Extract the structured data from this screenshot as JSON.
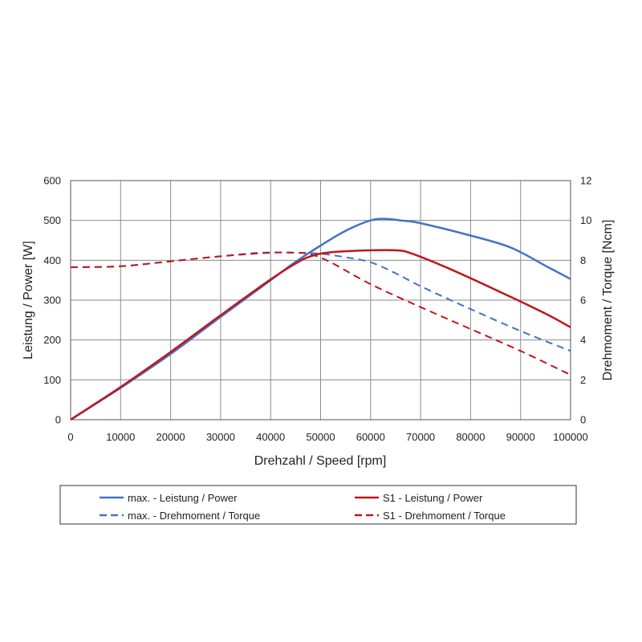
{
  "chart_data": {
    "type": "line",
    "title": "",
    "xlabel": "Drehzahl / Speed [rpm]",
    "ylabel_left": "Leistung / Power [W]",
    "ylabel_right": "Drehmoment / Torque [Ncm]",
    "xlim": [
      0,
      100000
    ],
    "ylim_left": [
      0,
      600
    ],
    "ylim_right": [
      0,
      12
    ],
    "x_ticks": [
      "0",
      "10000",
      "20000",
      "30000",
      "40000",
      "50000",
      "60000",
      "70000",
      "80000",
      "90000",
      "100000"
    ],
    "y_left_ticks": [
      "0",
      "100",
      "200",
      "300",
      "400",
      "500",
      "600"
    ],
    "y_right_ticks": [
      "0",
      "2",
      "4",
      "6",
      "8",
      "10",
      "12"
    ],
    "grid": true,
    "legend_position": "bottom",
    "colors": {
      "max": "#4472C4",
      "s1": "#C0161B"
    },
    "series": [
      {
        "id": "max-power",
        "name": "max. - Leistung / Power",
        "axis": "left",
        "color": "#4472C4",
        "dash": false,
        "x": [
          0,
          10000,
          20000,
          30000,
          40000,
          45000,
          50000,
          55000,
          60000,
          63000,
          66000,
          70000,
          80000,
          88000,
          95000,
          100000
        ],
        "y": [
          0,
          80,
          165,
          258,
          350,
          396,
          437,
          474,
          500,
          504,
          500,
          493,
          462,
          432,
          386,
          353
        ]
      },
      {
        "id": "s1-power",
        "name": "S1 - Leistung / Power",
        "axis": "left",
        "color": "#C0161B",
        "dash": false,
        "x": [
          0,
          10000,
          20000,
          30000,
          40000,
          45000,
          48000,
          52000,
          60000,
          65000,
          68000,
          75000,
          85000,
          95000,
          100000
        ],
        "y": [
          0,
          82,
          170,
          262,
          352,
          392,
          410,
          420,
          425,
          425,
          418,
          383,
          326,
          266,
          232
        ]
      },
      {
        "id": "max-torque",
        "name": "max. - Drehmoment / Torque",
        "axis": "right",
        "color": "#4472C4",
        "dash": true,
        "x": [
          0,
          10000,
          20000,
          30000,
          38000,
          45000,
          50000,
          55000,
          60000,
          65000,
          70000,
          80000,
          90000,
          100000
        ],
        "y": [
          7.65,
          7.7,
          7.95,
          8.2,
          8.38,
          8.38,
          8.33,
          8.15,
          7.9,
          7.35,
          6.7,
          5.55,
          4.45,
          3.45
        ]
      },
      {
        "id": "s1-torque",
        "name": "S1 - Drehmoment / Torque",
        "axis": "right",
        "color": "#C0161B",
        "dash": true,
        "x": [
          0,
          10000,
          20000,
          30000,
          40000,
          45000,
          48000,
          52000,
          60000,
          70000,
          80000,
          90000,
          100000
        ],
        "y": [
          7.65,
          7.7,
          7.95,
          8.2,
          8.38,
          8.38,
          8.3,
          7.9,
          6.8,
          5.65,
          4.55,
          3.45,
          2.25
        ]
      }
    ],
    "legend": [
      {
        "series": "max-power",
        "label": "max. - Leistung / Power"
      },
      {
        "series": "s1-power",
        "label": "S1 - Leistung / Power"
      },
      {
        "series": "max-torque",
        "label": "max. - Drehmoment / Torque"
      },
      {
        "series": "s1-torque",
        "label": "S1 - Drehmoment / Torque"
      }
    ]
  }
}
